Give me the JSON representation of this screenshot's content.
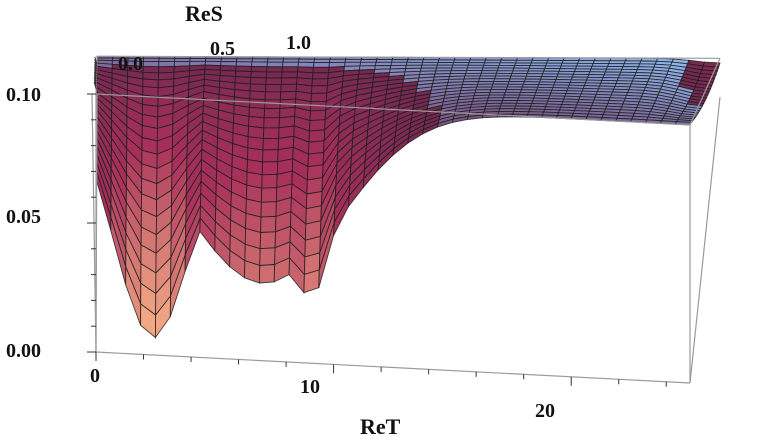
{
  "chart_data": {
    "type": "surface3d",
    "x_axis": {
      "label": "ReT",
      "ticks": [
        "0",
        "10",
        "20"
      ]
    },
    "y_axis": {
      "label": "ReS",
      "ticks": [
        "0.0",
        "0.5",
        "1.0"
      ]
    },
    "z_axis": {
      "ticks": [
        "0.00",
        "0.05",
        "0.10"
      ],
      "range": [
        0,
        0.1
      ]
    },
    "minima": [
      {
        "ReT": 2.4,
        "ReS": 0.0,
        "z": 0.01
      },
      {
        "ReT": 9.0,
        "ReS": 0.0,
        "z": 0.028
      }
    ],
    "plateau_z": 0.1,
    "colors": {
      "low": "#fbb58a",
      "mid": "#a8305a",
      "high": "#8fb8f2",
      "mesh": "#1c1c1c",
      "box": "#9a9a9a"
    }
  }
}
